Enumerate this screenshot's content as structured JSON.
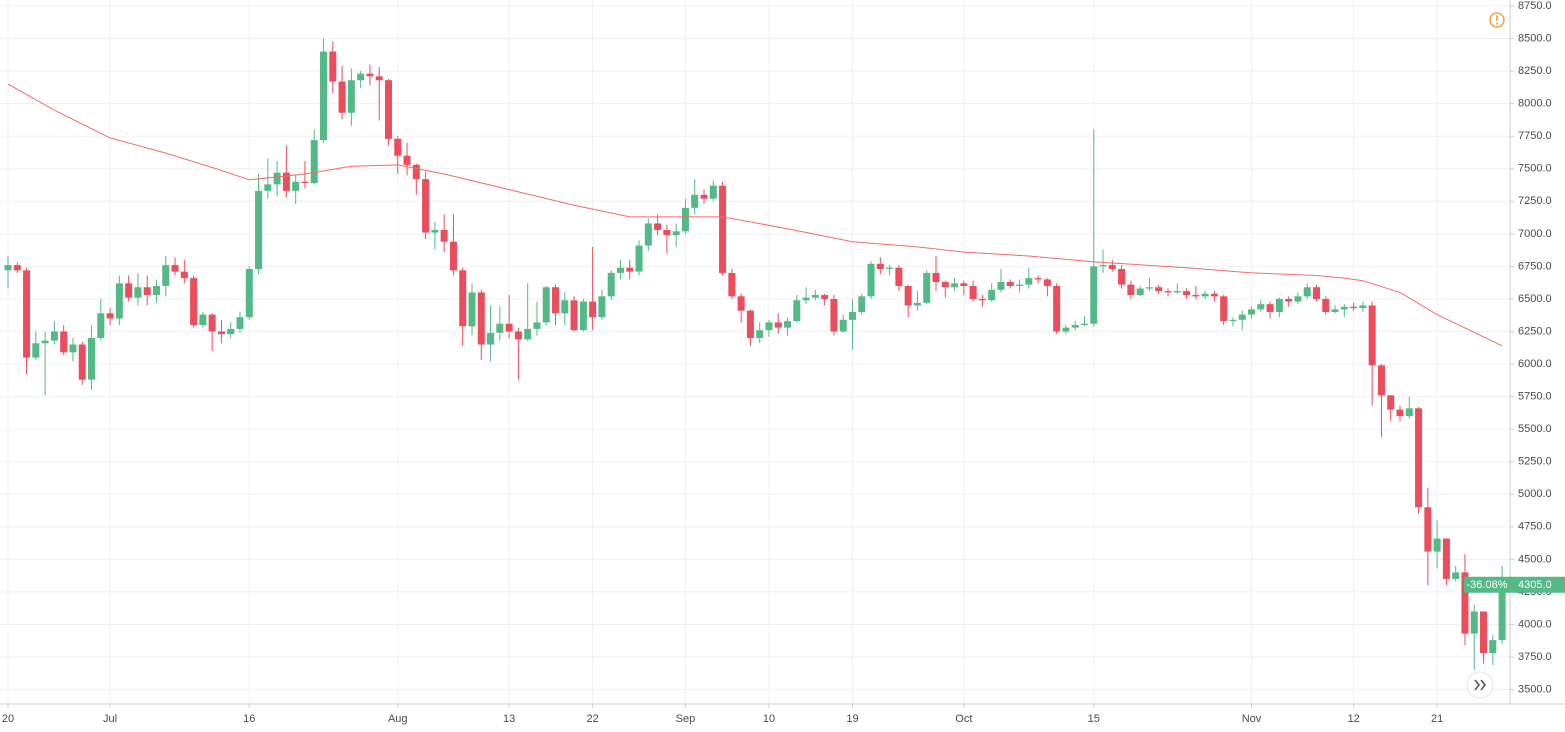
{
  "chart_data": {
    "type": "candlestick",
    "x": [
      "Jun 20",
      "Jun 21",
      "Jun 22",
      "Jun 23",
      "Jun 24",
      "Jun 25",
      "Jun 26",
      "Jun 27",
      "Jun 28",
      "Jun 29",
      "Jun 30",
      "Jul 1",
      "Jul 2",
      "Jul 3",
      "Jul 4",
      "Jul 5",
      "Jul 6",
      "Jul 7",
      "Jul 8",
      "Jul 9",
      "Jul 10",
      "Jul 11",
      "Jul 12",
      "Jul 13",
      "Jul 14",
      "Jul 15",
      "Jul 16",
      "Jul 17",
      "Jul 18",
      "Jul 19",
      "Jul 20",
      "Jul 21",
      "Jul 22",
      "Jul 23",
      "Jul 24",
      "Jul 25",
      "Jul 26",
      "Jul 27",
      "Jul 28",
      "Jul 29",
      "Jul 30",
      "Jul 31",
      "Aug 1",
      "Aug 2",
      "Aug 3",
      "Aug 4",
      "Aug 5",
      "Aug 6",
      "Aug 7",
      "Aug 8",
      "Aug 9",
      "Aug 10",
      "Aug 11",
      "Aug 12",
      "Aug 13",
      "Aug 14",
      "Aug 15",
      "Aug 16",
      "Aug 17",
      "Aug 18",
      "Aug 19",
      "Aug 20",
      "Aug 21",
      "Aug 22",
      "Aug 23",
      "Aug 24",
      "Aug 25",
      "Aug 26",
      "Aug 27",
      "Aug 28",
      "Aug 29",
      "Aug 30",
      "Aug 31",
      "Sep 1",
      "Sep 2",
      "Sep 3",
      "Sep 4",
      "Sep 5",
      "Sep 6",
      "Sep 7",
      "Sep 8",
      "Sep 9",
      "Sep 10",
      "Sep 11",
      "Sep 12",
      "Sep 13",
      "Sep 14",
      "Sep 15",
      "Sep 16",
      "Sep 17",
      "Sep 18",
      "Sep 19",
      "Sep 20",
      "Sep 21",
      "Sep 22",
      "Sep 23",
      "Sep 24",
      "Sep 25",
      "Sep 26",
      "Sep 27",
      "Sep 28",
      "Sep 29",
      "Sep 30",
      "Oct 1",
      "Oct 2",
      "Oct 3",
      "Oct 4",
      "Oct 5",
      "Oct 6",
      "Oct 7",
      "Oct 8",
      "Oct 9",
      "Oct 10",
      "Oct 11",
      "Oct 12",
      "Oct 13",
      "Oct 14",
      "Oct 15",
      "Oct 16",
      "Oct 17",
      "Oct 18",
      "Oct 19",
      "Oct 20",
      "Oct 21",
      "Oct 22",
      "Oct 23",
      "Oct 24",
      "Oct 25",
      "Oct 26",
      "Oct 27",
      "Oct 28",
      "Oct 29",
      "Oct 30",
      "Oct 31",
      "Nov 1",
      "Nov 2",
      "Nov 3",
      "Nov 4",
      "Nov 5",
      "Nov 6",
      "Nov 7",
      "Nov 8",
      "Nov 9",
      "Nov 10",
      "Nov 11",
      "Nov 12",
      "Nov 13",
      "Nov 14",
      "Nov 15",
      "Nov 16",
      "Nov 17",
      "Nov 18",
      "Nov 19",
      "Nov 20",
      "Nov 21",
      "Nov 22",
      "Nov 23",
      "Nov 24",
      "Nov 25",
      "Nov 26",
      "Nov 27",
      "Nov 28"
    ],
    "open": [
      6720,
      6760,
      6720,
      6050,
      6160,
      6180,
      6250,
      6090,
      6150,
      5880,
      6200,
      6390,
      6350,
      6620,
      6510,
      6590,
      6530,
      6600,
      6760,
      6710,
      6660,
      6300,
      6380,
      6250,
      6230,
      6270,
      6360,
      6730,
      7330,
      7380,
      7470,
      7330,
      7400,
      7390,
      7720,
      8400,
      8170,
      7930,
      8180,
      8230,
      8210,
      8180,
      7730,
      7600,
      7530,
      7420,
      7010,
      7030,
      6940,
      6720,
      6290,
      6550,
      6150,
      6240,
      6310,
      6250,
      6190,
      6270,
      6320,
      6590,
      6390,
      6490,
      6260,
      6480,
      6360,
      6520,
      6700,
      6740,
      6710,
      6910,
      7080,
      7030,
      6990,
      7020,
      7200,
      7300,
      7270,
      7370,
      6700,
      6520,
      6410,
      6200,
      6260,
      6320,
      6280,
      6330,
      6490,
      6510,
      6530,
      6500,
      6250,
      6340,
      6400,
      6520,
      6770,
      6730,
      6740,
      6600,
      6450,
      6470,
      6700,
      6630,
      6590,
      6620,
      6600,
      6500,
      6490,
      6570,
      6630,
      6600,
      6610,
      6660,
      6650,
      6600,
      6250,
      6280,
      6300,
      6310,
      6750,
      6760,
      6730,
      6610,
      6530,
      6580,
      6590,
      6560,
      6550,
      6560,
      6530,
      6520,
      6540,
      6520,
      6330,
      6340,
      6380,
      6420,
      6460,
      6400,
      6500,
      6480,
      6520,
      6590,
      6500,
      6400,
      6420,
      6440,
      6430,
      6450,
      5990,
      5760,
      5650,
      5600,
      5660,
      4900,
      4560,
      4660,
      4350,
      4400,
      3930,
      4100,
      3780,
      3880
    ],
    "high": [
      6830,
      6780,
      6740,
      6250,
      6250,
      6330,
      6300,
      6200,
      6170,
      6300,
      6500,
      6430,
      6680,
      6680,
      6700,
      6680,
      6650,
      6830,
      6820,
      6800,
      6680,
      6400,
      6390,
      6340,
      6320,
      6400,
      6750,
      7460,
      7580,
      7560,
      7680,
      7450,
      7560,
      7800,
      8500,
      8480,
      8290,
      8270,
      8250,
      8300,
      8280,
      8190,
      7750,
      7700,
      7540,
      7480,
      7090,
      7150,
      7150,
      6740,
      6620,
      6570,
      6450,
      6440,
      6530,
      6280,
      6620,
      6480,
      6600,
      6610,
      6550,
      6520,
      6500,
      6900,
      6570,
      6720,
      6800,
      6800,
      6950,
      7120,
      7150,
      7070,
      7080,
      7270,
      7420,
      7340,
      7410,
      7400,
      6730,
      6540,
      6420,
      6320,
      6340,
      6390,
      6360,
      6530,
      6590,
      6570,
      6540,
      6530,
      6380,
      6500,
      6540,
      6790,
      6820,
      6760,
      6760,
      6610,
      6560,
      6720,
      6830,
      6640,
      6660,
      6640,
      6640,
      6530,
      6620,
      6730,
      6650,
      6650,
      6740,
      6680,
      6660,
      6620,
      6300,
      6330,
      6370,
      7800,
      6880,
      6800,
      6760,
      6640,
      6600,
      6660,
      6610,
      6580,
      6620,
      6580,
      6600,
      6560,
      6560,
      6530,
      6360,
      6410,
      6440,
      6490,
      6480,
      6510,
      6520,
      6550,
      6620,
      6610,
      6520,
      6450,
      6460,
      6470,
      6480,
      6480,
      6000,
      5760,
      5680,
      5750,
      5670,
      5050,
      4800,
      4660,
      4450,
      4540,
      4150,
      4100,
      3920,
      4450
    ],
    "low": [
      6580,
      6700,
      5920,
      6030,
      5760,
      6150,
      6070,
      6020,
      5840,
      5800,
      6180,
      6300,
      6300,
      6480,
      6450,
      6450,
      6470,
      6520,
      6680,
      6620,
      6280,
      6280,
      6100,
      6160,
      6200,
      6240,
      6340,
      6690,
      7270,
      7290,
      7280,
      7230,
      7350,
      7380,
      7700,
      8080,
      7880,
      7830,
      8120,
      8140,
      7870,
      7680,
      7460,
      7450,
      7300,
      6960,
      6880,
      6860,
      6680,
      6140,
      6220,
      6030,
      6020,
      6180,
      6200,
      5880,
      6180,
      6220,
      6300,
      6300,
      6300,
      6250,
      6250,
      6260,
      6340,
      6490,
      6650,
      6650,
      6680,
      6870,
      6990,
      6850,
      6900,
      7000,
      7150,
      7230,
      7250,
      6680,
      6500,
      6320,
      6140,
      6160,
      6210,
      6230,
      6220,
      6320,
      6460,
      6490,
      6450,
      6220,
      6240,
      6110,
      6380,
      6500,
      6690,
      6680,
      6560,
      6360,
      6410,
      6460,
      6560,
      6510,
      6560,
      6530,
      6480,
      6440,
      6480,
      6550,
      6580,
      6550,
      6580,
      6620,
      6520,
      6230,
      6230,
      6260,
      6290,
      6290,
      6700,
      6710,
      6580,
      6500,
      6520,
      6560,
      6540,
      6520,
      6540,
      6500,
      6500,
      6500,
      6480,
      6300,
      6290,
      6260,
      6350,
      6400,
      6350,
      6360,
      6440,
      6460,
      6500,
      6480,
      6380,
      6390,
      6360,
      6410,
      6400,
      5680,
      5440,
      5560,
      5560,
      5580,
      4850,
      4300,
      4430,
      4300,
      4330,
      3840,
      3650,
      3700,
      3690,
      3850
    ],
    "close": [
      6760,
      6720,
      6050,
      6160,
      6180,
      6250,
      6090,
      6150,
      5880,
      6200,
      6390,
      6350,
      6620,
      6510,
      6590,
      6530,
      6600,
      6760,
      6710,
      6660,
      6300,
      6380,
      6250,
      6230,
      6270,
      6360,
      6730,
      7330,
      7380,
      7470,
      7330,
      7400,
      7390,
      7720,
      8400,
      8170,
      7930,
      8180,
      8230,
      8210,
      8180,
      7730,
      7600,
      7530,
      7420,
      7010,
      7030,
      6940,
      6720,
      6290,
      6550,
      6150,
      6240,
      6310,
      6250,
      6190,
      6270,
      6320,
      6590,
      6390,
      6490,
      6260,
      6480,
      6360,
      6520,
      6700,
      6740,
      6710,
      6910,
      7080,
      7030,
      6990,
      7020,
      7200,
      7300,
      7270,
      7370,
      6700,
      6520,
      6410,
      6200,
      6260,
      6320,
      6280,
      6330,
      6490,
      6510,
      6530,
      6500,
      6250,
      6340,
      6400,
      6520,
      6770,
      6730,
      6740,
      6600,
      6450,
      6470,
      6700,
      6630,
      6590,
      6620,
      6600,
      6500,
      6490,
      6570,
      6630,
      6600,
      6610,
      6660,
      6650,
      6600,
      6250,
      6280,
      6300,
      6310,
      6750,
      6760,
      6730,
      6610,
      6530,
      6580,
      6590,
      6560,
      6550,
      6560,
      6530,
      6520,
      6540,
      6520,
      6330,
      6340,
      6380,
      6420,
      6460,
      6400,
      6500,
      6480,
      6520,
      6590,
      6500,
      6400,
      6420,
      6440,
      6430,
      6450,
      5990,
      5760,
      5650,
      5600,
      5660,
      4900,
      4560,
      4660,
      4350,
      4400,
      3930,
      4100,
      3780,
      3880,
      4305
    ],
    "up_color": "#53b987",
    "down_color": "#eb4d5c",
    "ma": {
      "color": "#f26b6b",
      "x": [
        "Jun 20",
        "Jun 25",
        "Jul 1",
        "Jul 7",
        "Jul 12",
        "Jul 16",
        "Jul 22",
        "Jul 27",
        "Aug 1",
        "Aug 6",
        "Aug 13",
        "Aug 20",
        "Aug 26",
        "Sep 1",
        "Sep 5",
        "Sep 12",
        "Sep 19",
        "Sep 26",
        "Oct 1",
        "Oct 8",
        "Oct 15",
        "Oct 25",
        "Nov 1",
        "Nov 8",
        "Nov 11",
        "Nov 13",
        "Nov 17",
        "Nov 21",
        "Nov 28"
      ],
      "values": [
        8150,
        7950,
        7737,
        7620,
        7510,
        7415,
        7460,
        7520,
        7530,
        7460,
        7340,
        7220,
        7130,
        7130,
        7130,
        7040,
        6940,
        6900,
        6860,
        6830,
        6785,
        6740,
        6700,
        6680,
        6660,
        6640,
        6550,
        6380,
        6140
      ]
    },
    "ylim": [
      3420,
      8750
    ],
    "yticks": [
      {
        "value": 3500,
        "label": "3500.0"
      },
      {
        "value": 3750,
        "label": "3750.0"
      },
      {
        "value": 4000,
        "label": "4000.0"
      },
      {
        "value": 4250,
        "label": "4250.0"
      },
      {
        "value": 4500,
        "label": "4500.0"
      },
      {
        "value": 4750,
        "label": "4750.0"
      },
      {
        "value": 5000,
        "label": "5000.0"
      },
      {
        "value": 5250,
        "label": "5250.0"
      },
      {
        "value": 5500,
        "label": "5500.0"
      },
      {
        "value": 5750,
        "label": "5750.0"
      },
      {
        "value": 6000,
        "label": "6000.0"
      },
      {
        "value": 6250,
        "label": "6250.0"
      },
      {
        "value": 6500,
        "label": "6500.0"
      },
      {
        "value": 6750,
        "label": "6750.0"
      },
      {
        "value": 7000,
        "label": "7000.0"
      },
      {
        "value": 7250,
        "label": "7250.0"
      },
      {
        "value": 7500,
        "label": "7500.0"
      },
      {
        "value": 7750,
        "label": "7750.0"
      },
      {
        "value": 8000,
        "label": "8000.0"
      },
      {
        "value": 8250,
        "label": "8250.0"
      },
      {
        "value": 8500,
        "label": "8500.0"
      },
      {
        "value": 8750,
        "label": "8750.0"
      }
    ],
    "xticks": [
      {
        "value": "Jun 20",
        "label": "20"
      },
      {
        "value": "Jul 1",
        "label": "Jul"
      },
      {
        "value": "Jul 16",
        "label": "16"
      },
      {
        "value": "Aug 1",
        "label": "Aug"
      },
      {
        "value": "Aug 13",
        "label": "13"
      },
      {
        "value": "Aug 22",
        "label": "22"
      },
      {
        "value": "Sep 1",
        "label": "Sep"
      },
      {
        "value": "Sep 10",
        "label": "10"
      },
      {
        "value": "Sep 19",
        "label": "19"
      },
      {
        "value": "Oct 1",
        "label": "Oct"
      },
      {
        "value": "Oct 15",
        "label": "15"
      },
      {
        "value": "Nov 1",
        "label": "Nov"
      },
      {
        "value": "Nov 12",
        "label": "12"
      },
      {
        "value": "Nov 21",
        "label": "21"
      }
    ],
    "grid": true,
    "change": {
      "value": -36.08,
      "label": "-36.08%"
    },
    "price_tag": {
      "value": 4305,
      "label": "4305.0"
    }
  }
}
